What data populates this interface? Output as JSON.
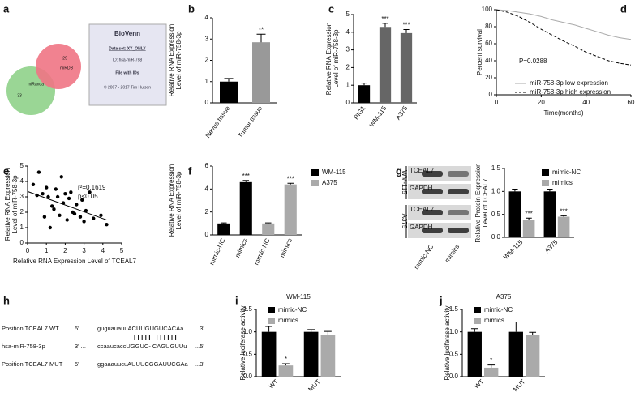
{
  "chart_data": [
    {
      "type": "venn",
      "panel": "a",
      "sets": [
        {
          "name": "miRanda",
          "count": 33,
          "color": "#8fd18a"
        },
        {
          "name": "miRDB",
          "count": 29,
          "color": "#f07484"
        }
      ],
      "box_lines": [
        "BioVenn",
        "Data set: XY_ONLY",
        "ID: hsa-miR-758",
        "File with IDs",
        "© 2007 - 2017 Tim Hulsen"
      ]
    },
    {
      "type": "bar",
      "panel": "b",
      "ylabel": [
        "Relative RNA Expression",
        "Level of miR-758-3p"
      ],
      "categories": [
        "Nevus tissue",
        "Tumor tissue"
      ],
      "values": [
        1.0,
        2.85
      ],
      "errors": [
        0.15,
        0.38
      ],
      "annotations": [
        null,
        "**"
      ],
      "color": [
        "#000000",
        "#999999"
      ],
      "ylim": [
        0,
        4
      ],
      "yticks": [
        0,
        1,
        2,
        3,
        4
      ]
    },
    {
      "type": "bar",
      "panel": "c",
      "ylabel": [
        "Relative RNA Expression",
        "Level of miR-758-3p"
      ],
      "categories": [
        "PIG1",
        "WM-115",
        "A375"
      ],
      "values": [
        1.0,
        4.3,
        3.95
      ],
      "errors": [
        0.12,
        0.2,
        0.2
      ],
      "annotations": [
        null,
        "***",
        "***"
      ],
      "color": [
        "#000000",
        "#666666",
        "#666666"
      ],
      "ylim": [
        0,
        5
      ],
      "yticks": [
        0,
        1,
        2,
        3,
        4,
        5
      ]
    },
    {
      "type": "line",
      "panel": "d",
      "ylabel": [
        "Percent survival"
      ],
      "xlabel": "Time(months)",
      "annotation": "P=0.0288",
      "x": [
        0,
        5,
        10,
        15,
        20,
        25,
        30,
        35,
        40,
        45,
        50,
        55,
        60
      ],
      "series": [
        {
          "name": "miR-758-3p low expression",
          "color": "#aaaaaa",
          "line_style": "solid",
          "values": [
            100,
            99,
            97,
            95,
            92,
            88,
            85,
            82,
            78,
            74,
            70,
            67,
            65
          ]
        },
        {
          "name": "miR-758-3p high expression",
          "color": "#000000",
          "line_style": "dashed",
          "values": [
            100,
            97,
            92,
            85,
            77,
            70,
            63,
            57,
            50,
            45,
            40,
            37,
            35
          ]
        }
      ],
      "xlim": [
        0,
        60
      ],
      "xticks": [
        0,
        20,
        40,
        60
      ],
      "ylim": [
        0,
        100
      ],
      "yticks": [
        0,
        20,
        40,
        60,
        80,
        100
      ]
    },
    {
      "type": "scatter",
      "panel": "e",
      "ylabel": [
        "Relative RNA Expression",
        "Level of miR-758-3p"
      ],
      "xlabel": "Relative RNA Expression Level of TCEAL7",
      "annotations": [
        "r²=0.1619",
        "p<0.05"
      ],
      "color": "#000000",
      "x": [
        0.3,
        0.5,
        0.6,
        0.8,
        0.9,
        1.0,
        1.1,
        1.2,
        1.3,
        1.4,
        1.5,
        1.6,
        1.7,
        1.8,
        1.9,
        2.0,
        2.1,
        2.2,
        2.3,
        2.4,
        2.5,
        2.6,
        2.8,
        2.9,
        3.0,
        3.1,
        3.3,
        3.5,
        3.9,
        4.2
      ],
      "y": [
        3.8,
        3.1,
        4.6,
        3.2,
        1.7,
        3.6,
        3.0,
        1.0,
        2.4,
        2.2,
        3.5,
        3.0,
        1.8,
        4.3,
        2.6,
        3.2,
        1.5,
        2.9,
        3.3,
        2.0,
        1.9,
        2.5,
        1.7,
        2.8,
        1.4,
        2.1,
        3.3,
        1.6,
        1.8,
        1.2
      ],
      "trend_line": {
        "x": [
          0,
          4.2
        ],
        "y": [
          3.35,
          1.5
        ]
      },
      "xlim": [
        0,
        5
      ],
      "xticks": [
        0,
        1,
        2,
        3,
        4,
        5
      ],
      "ylim": [
        0,
        5
      ],
      "yticks": [
        0,
        1,
        2,
        3,
        4,
        5
      ]
    },
    {
      "type": "bar",
      "panel": "f",
      "ylabel": [
        "Relative RNA Expression",
        "Level of miR-758-3p"
      ],
      "categories": [
        "mimic-NC",
        "mimics",
        "mimic-NC",
        "mimics"
      ],
      "series": [
        {
          "name": "WM-115",
          "color": "#000000",
          "values": [
            1.0,
            4.6,
            null,
            null
          ],
          "errors": [
            0.05,
            0.15,
            null,
            null
          ],
          "annotations": [
            null,
            "***",
            null,
            null
          ]
        },
        {
          "name": "A375",
          "color": "#aaaaaa",
          "values": [
            null,
            null,
            1.0,
            4.4
          ],
          "errors": [
            null,
            null,
            0.05,
            0.1
          ],
          "annotations": [
            null,
            null,
            null,
            "***"
          ]
        }
      ],
      "ylim": [
        0,
        6
      ],
      "yticks": [
        0,
        2,
        4,
        6
      ]
    },
    {
      "type": "bar",
      "panel": "g",
      "ylabel": [
        "Relative Protein Expression",
        "Level of TCEAL7"
      ],
      "blot": {
        "groups": [
          "WM-115",
          "A375"
        ],
        "rows": [
          "TCEAL7",
          "GAPDH"
        ],
        "lanes": [
          "mimic-NC",
          "mimics"
        ]
      },
      "categories": [
        "WM-115",
        "A375"
      ],
      "series": [
        {
          "name": "mimic-NC",
          "color": "#000000",
          "values": [
            1.0,
            1.0
          ],
          "errors": [
            0.05,
            0.05
          ],
          "annotations": [
            null,
            null
          ]
        },
        {
          "name": "mimics",
          "color": "#aaaaaa",
          "values": [
            0.38,
            0.45
          ],
          "errors": [
            0.04,
            0.02
          ],
          "annotations": [
            "***",
            "***"
          ]
        }
      ],
      "ylim": [
        0,
        1.5
      ],
      "yticks": [
        {
          "value": 0,
          "label": "0.0"
        },
        {
          "value": 0.5,
          "label": "0.5"
        },
        {
          "value": 1,
          "label": "1.0"
        },
        {
          "value": 1.5,
          "label": "1.5"
        }
      ]
    },
    {
      "type": "sequence",
      "panel": "h",
      "rows": [
        [
          "Position TCEAL7 WT",
          "5'",
          "guguauauuACUUGUGUCACAa",
          "...3'"
        ],
        [
          "hsa-miR-758-3p",
          "3' ...",
          "ccaaucaccUGGUC- CAGUGUUu",
          "...5'"
        ],
        [
          "Position TCEAL7 MUT",
          "5'",
          "ggaaauucuAUUUCGGAUUCGAa",
          "...3'"
        ]
      ]
    },
    {
      "type": "bar",
      "panel": "i",
      "title": "WM-115",
      "ylabel": [
        "Relative luciferase activity"
      ],
      "categories": [
        "WT",
        "MUT"
      ],
      "series": [
        {
          "name": "mimic-NC",
          "color": "#000000",
          "values": [
            1.0,
            1.0
          ],
          "errors": [
            0.12,
            0.05
          ],
          "annotations": [
            null,
            null
          ]
        },
        {
          "name": "mimics",
          "color": "#aaaaaa",
          "values": [
            0.25,
            0.93
          ],
          "errors": [
            0.04,
            0.08
          ],
          "annotations": [
            "*",
            null
          ]
        }
      ],
      "ylim": [
        0,
        1.5
      ],
      "yticks": [
        {
          "value": 0,
          "label": "0.0"
        },
        {
          "value": 0.5,
          "label": "0.5"
        },
        {
          "value": 1,
          "label": "1.0"
        },
        {
          "value": 1.5,
          "label": "1.5"
        }
      ]
    },
    {
      "type": "bar",
      "panel": "j",
      "title": "A375",
      "ylabel": [
        "Relative luciferase activity"
      ],
      "categories": [
        "WT",
        "MUT"
      ],
      "series": [
        {
          "name": "mimic-NC",
          "color": "#000000",
          "values": [
            1.0,
            1.0
          ],
          "errors": [
            0.07,
            0.22
          ],
          "annotations": [
            null,
            null
          ]
        },
        {
          "name": "mimics",
          "color": "#aaaaaa",
          "values": [
            0.2,
            0.93
          ],
          "errors": [
            0.06,
            0.06
          ],
          "annotations": [
            "*",
            null
          ]
        }
      ],
      "ylim": [
        0,
        1.5
      ],
      "yticks": [
        {
          "value": 0,
          "label": "0.0"
        },
        {
          "value": 0.5,
          "label": "0.5"
        },
        {
          "value": 1,
          "label": "1.0"
        },
        {
          "value": 1.5,
          "label": "1.5"
        }
      ]
    }
  ]
}
